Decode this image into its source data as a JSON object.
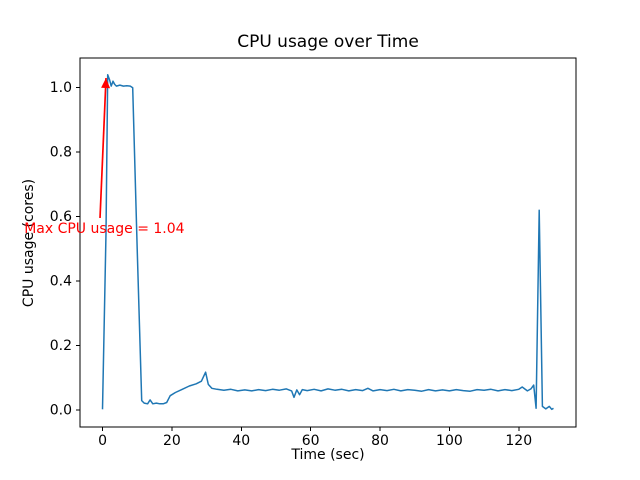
{
  "chart_data": {
    "type": "line",
    "title": "CPU usage over Time",
    "xlabel": "Time (sec)",
    "ylabel": "CPU usage (cores)",
    "line_color": "#1f77b4",
    "background": "#ffffff",
    "axes_color": "#000000",
    "grid": false,
    "legend": "none",
    "xlim": [
      -6.5,
      136.5
    ],
    "ylim": [
      -0.052,
      1.092
    ],
    "xticks": {
      "values": [
        0,
        20,
        40,
        60,
        80,
        100,
        120
      ],
      "labels": [
        "0",
        "20",
        "40",
        "60",
        "80",
        "100",
        "120"
      ]
    },
    "yticks": {
      "values": [
        0.0,
        0.2,
        0.4,
        0.6,
        0.8,
        1.0
      ],
      "labels": [
        "0.0",
        "0.2",
        "0.4",
        "0.6",
        "0.8",
        "1.0"
      ]
    },
    "points": [
      [
        0,
        0.003
      ],
      [
        1,
        0.55
      ],
      [
        1.5,
        1.04
      ],
      [
        2,
        1.025
      ],
      [
        2.5,
        1.005
      ],
      [
        3,
        1.02
      ],
      [
        3.5,
        1.01
      ],
      [
        4,
        1.005
      ],
      [
        5,
        1.008
      ],
      [
        6,
        1.005
      ],
      [
        7,
        1.006
      ],
      [
        8,
        1.005
      ],
      [
        8.7,
        1.0
      ],
      [
        10,
        0.5
      ],
      [
        11.3,
        0.03
      ],
      [
        12,
        0.022
      ],
      [
        13,
        0.02
      ],
      [
        13.7,
        0.032
      ],
      [
        14.5,
        0.02
      ],
      [
        15.5,
        0.022
      ],
      [
        16.5,
        0.02
      ],
      [
        17.5,
        0.02
      ],
      [
        18.5,
        0.024
      ],
      [
        19.5,
        0.045
      ],
      [
        21,
        0.055
      ],
      [
        23,
        0.065
      ],
      [
        25,
        0.075
      ],
      [
        27,
        0.082
      ],
      [
        28.5,
        0.09
      ],
      [
        29.7,
        0.118
      ],
      [
        30.5,
        0.08
      ],
      [
        31.5,
        0.068
      ],
      [
        33,
        0.065
      ],
      [
        35,
        0.062
      ],
      [
        37,
        0.065
      ],
      [
        39,
        0.06
      ],
      [
        41,
        0.063
      ],
      [
        43,
        0.06
      ],
      [
        45,
        0.064
      ],
      [
        47,
        0.061
      ],
      [
        49,
        0.065
      ],
      [
        51,
        0.062
      ],
      [
        53,
        0.066
      ],
      [
        54.5,
        0.06
      ],
      [
        55.2,
        0.04
      ],
      [
        56,
        0.063
      ],
      [
        56.8,
        0.048
      ],
      [
        57.6,
        0.064
      ],
      [
        59,
        0.061
      ],
      [
        61,
        0.065
      ],
      [
        63,
        0.06
      ],
      [
        65,
        0.066
      ],
      [
        67,
        0.062
      ],
      [
        69,
        0.065
      ],
      [
        71,
        0.06
      ],
      [
        73,
        0.064
      ],
      [
        75,
        0.061
      ],
      [
        76.5,
        0.068
      ],
      [
        78,
        0.06
      ],
      [
        80,
        0.064
      ],
      [
        82,
        0.061
      ],
      [
        84,
        0.065
      ],
      [
        86,
        0.06
      ],
      [
        88,
        0.064
      ],
      [
        90,
        0.062
      ],
      [
        92,
        0.059
      ],
      [
        94,
        0.064
      ],
      [
        96,
        0.06
      ],
      [
        98,
        0.063
      ],
      [
        100,
        0.06
      ],
      [
        102,
        0.064
      ],
      [
        104,
        0.061
      ],
      [
        106,
        0.059
      ],
      [
        108,
        0.064
      ],
      [
        110,
        0.062
      ],
      [
        112,
        0.065
      ],
      [
        114,
        0.06
      ],
      [
        116,
        0.064
      ],
      [
        118,
        0.061
      ],
      [
        120,
        0.065
      ],
      [
        121,
        0.072
      ],
      [
        122.5,
        0.06
      ],
      [
        123.5,
        0.066
      ],
      [
        124.3,
        0.078
      ],
      [
        125,
        0.006
      ],
      [
        125.9,
        0.62
      ],
      [
        126.8,
        0.012
      ],
      [
        127.8,
        0.004
      ],
      [
        128.8,
        0.012
      ],
      [
        129.5,
        0.003
      ],
      [
        130,
        0.006
      ]
    ],
    "annotation": {
      "text": "Max CPU usage = 1.04",
      "color": "#ff0000",
      "text_pos": [
        -22.6,
        0.55
      ],
      "arrow_start": [
        -0.73,
        0.596
      ],
      "arrow_end": [
        1.0,
        1.03
      ]
    }
  }
}
